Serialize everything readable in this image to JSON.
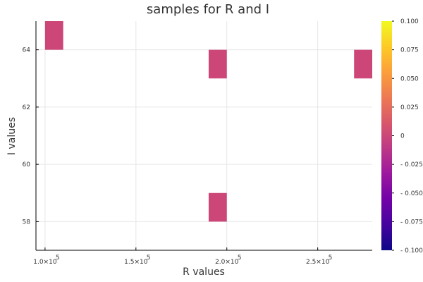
{
  "chart_data": {
    "type": "heatmap",
    "title": "samples for R and I",
    "xlabel": "R values",
    "ylabel": "I values",
    "xlim": [
      95000,
      280000
    ],
    "ylim": [
      57,
      65
    ],
    "grid": true,
    "x_ticks": [
      {
        "value": 100000,
        "mantissa": "1.0×10",
        "exponent": "5"
      },
      {
        "value": 150000,
        "mantissa": "1.5×10",
        "exponent": "5"
      },
      {
        "value": 200000,
        "mantissa": "2.0×10",
        "exponent": "5"
      },
      {
        "value": 250000,
        "mantissa": "2.5×10",
        "exponent": "5"
      }
    ],
    "y_ticks": [
      "58",
      "60",
      "62",
      "64"
    ],
    "cells": [
      {
        "x0": 100000,
        "x1": 110000,
        "y0": 64,
        "y1": 65,
        "value": 0
      },
      {
        "x0": 190000,
        "x1": 200000,
        "y0": 63,
        "y1": 64,
        "value": 0
      },
      {
        "x0": 270000,
        "x1": 280000,
        "y0": 63,
        "y1": 64,
        "value": 0
      },
      {
        "x0": 190000,
        "x1": 200000,
        "y0": 58,
        "y1": 59,
        "value": 0
      }
    ],
    "colorbar": {
      "colormap": "plasma",
      "clim": [
        -0.1,
        0.1
      ],
      "ticks": [
        "0.100",
        "0.075",
        "0.050",
        "0.025",
        "0",
        "- 0.025",
        "- 0.050",
        "- 0.075",
        "- 0.100"
      ],
      "stops": [
        "#0d0887",
        "#46039f",
        "#7201a8",
        "#9c179e",
        "#bd3786",
        "#d8576b",
        "#ed7953",
        "#fb9f3a",
        "#fdca26",
        "#f0f921"
      ]
    },
    "cell_color": "#cc4778"
  }
}
